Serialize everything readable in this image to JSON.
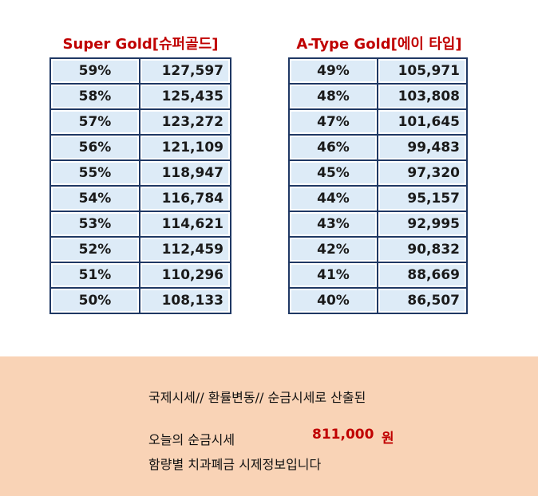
{
  "left_table": {
    "title": "Super Gold[슈퍼골드]",
    "rows": [
      {
        "pct": "59%",
        "value": "127,597"
      },
      {
        "pct": "58%",
        "value": "125,435"
      },
      {
        "pct": "57%",
        "value": "123,272"
      },
      {
        "pct": "56%",
        "value": "121,109"
      },
      {
        "pct": "55%",
        "value": "118,947"
      },
      {
        "pct": "54%",
        "value": "116,784"
      },
      {
        "pct": "53%",
        "value": "114,621"
      },
      {
        "pct": "52%",
        "value": "112,459"
      },
      {
        "pct": "51%",
        "value": "110,296"
      },
      {
        "pct": "50%",
        "value": "108,133"
      }
    ]
  },
  "right_table": {
    "title": "A-Type Gold[에이 타입]",
    "rows": [
      {
        "pct": "49%",
        "value": "105,971"
      },
      {
        "pct": "48%",
        "value": "103,808"
      },
      {
        "pct": "47%",
        "value": "101,645"
      },
      {
        "pct": "46%",
        "value": "99,483"
      },
      {
        "pct": "45%",
        "value": "97,320"
      },
      {
        "pct": "44%",
        "value": "95,157"
      },
      {
        "pct": "43%",
        "value": "92,995"
      },
      {
        "pct": "42%",
        "value": "90,832"
      },
      {
        "pct": "41%",
        "value": "88,669"
      },
      {
        "pct": "40%",
        "value": "86,507"
      }
    ]
  },
  "info": {
    "line1": "국제시세// 환률변동// 순금시세로 산출된",
    "today_label": "오늘의 순금시세",
    "today_price": "811,000",
    "today_unit": "원",
    "line3": "함량별 치과폐금 시제정보입니다"
  },
  "colors": {
    "title_red": "#c00000",
    "cell_blue": "#ddebf7",
    "border_navy": "#1f3864",
    "info_bg": "#f9d3b6"
  }
}
